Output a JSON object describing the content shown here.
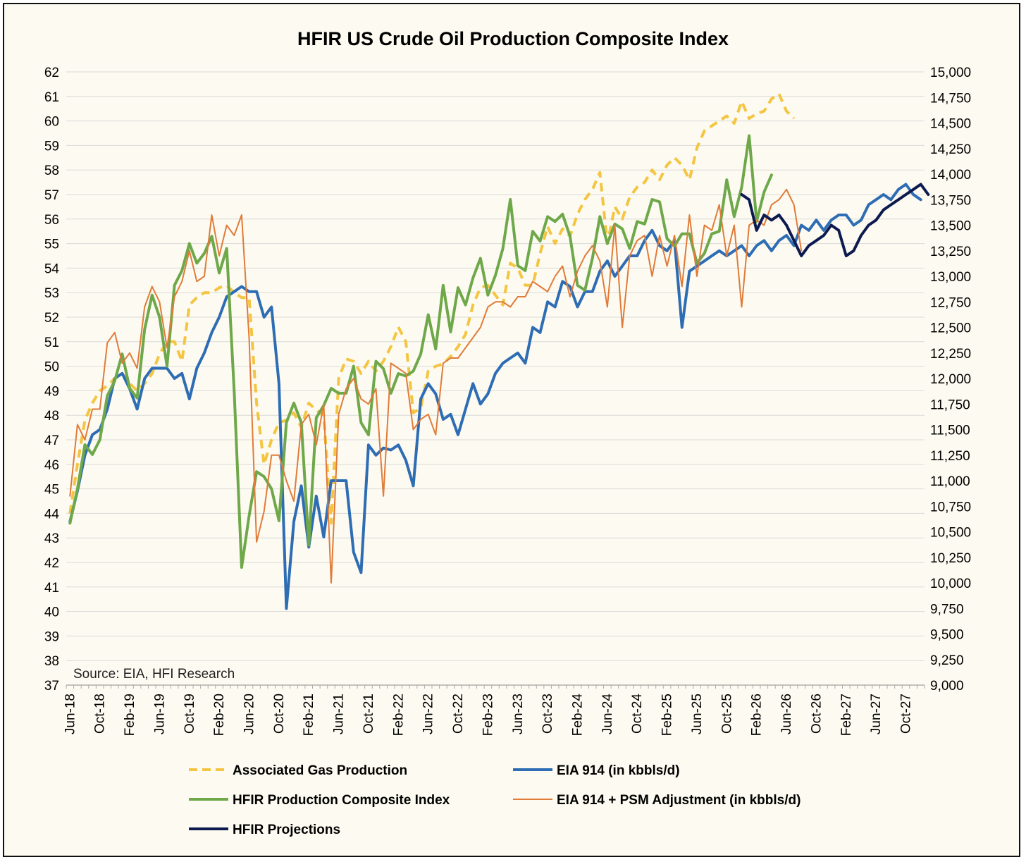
{
  "chart_data": {
    "type": "line",
    "title": "HFIR US Crude Oil Production Composite Index",
    "source": "Source: EIA, HFI Research",
    "left_axis": {
      "min": 37,
      "max": 62,
      "step": 1,
      "labels": [
        "37",
        "38",
        "39",
        "40",
        "41",
        "42",
        "43",
        "44",
        "45",
        "46",
        "47",
        "48",
        "49",
        "50",
        "51",
        "52",
        "53",
        "54",
        "55",
        "56",
        "57",
        "58",
        "59",
        "60",
        "61",
        "62"
      ]
    },
    "right_axis": {
      "min": 9000,
      "max": 15000,
      "step": 250,
      "labels": [
        "9,000",
        "9,250",
        "9,500",
        "9,750",
        "10,000",
        "10,250",
        "10,500",
        "10,750",
        "11,000",
        "11,250",
        "11,500",
        "11,750",
        "12,000",
        "12,250",
        "12,500",
        "12,750",
        "13,000",
        "13,250",
        "13,500",
        "13,750",
        "14,000",
        "14,250",
        "14,500",
        "14,750",
        "15,000"
      ]
    },
    "x_axis": {
      "start": "Jun-2018",
      "months": 115,
      "labels": [
        "Jun-18",
        "Oct-18",
        "Feb-19",
        "Jun-19",
        "Oct-19",
        "Feb-20",
        "Jun-20",
        "Oct-20",
        "Feb-21",
        "Jun-21",
        "Oct-21",
        "Feb-22",
        "Jun-22",
        "Oct-22",
        "Feb-23",
        "Jun-23",
        "Oct-23",
        "Feb-24",
        "Jun-24",
        "Oct-24",
        "Feb-25",
        "Jun-25",
        "Oct-25",
        "Feb-26",
        "Jun-26",
        "Oct-26",
        "Feb-27",
        "Jun-27",
        "Oct-27"
      ]
    },
    "legend": {
      "position": "bottom",
      "columns": 2
    },
    "series": [
      {
        "name": "Associated Gas Production",
        "axis": "left",
        "color": "#f4c542",
        "dash": true,
        "width": 4,
        "start": 0,
        "values": [
          44.0,
          46.0,
          47.8,
          48.5,
          49.0,
          49.2,
          49.5,
          49.7,
          49.3,
          49.0,
          49.3,
          49.7,
          50.5,
          51.0,
          51.0,
          50.2,
          52.5,
          52.8,
          53.0,
          53.0,
          53.2,
          53.3,
          53.0,
          52.8,
          52.8,
          48.5,
          46.0,
          47.0,
          47.7,
          47.8,
          48.1,
          47.5,
          48.5,
          48.2,
          48.0,
          43.6,
          49.5,
          50.3,
          50.2,
          49.7,
          50.2,
          49.8,
          50.2,
          50.8,
          51.6,
          51.0,
          48.1,
          48.3,
          49.8,
          50.0,
          50.1,
          50.4,
          50.8,
          51.3,
          52.5,
          53.2,
          53.3,
          52.9,
          52.5,
          54.2,
          54.0,
          53.3,
          53.3,
          54.6,
          55.7,
          55.0,
          55.6,
          55.3,
          56.2,
          56.8,
          57.2,
          57.9,
          55.0,
          56.5,
          56.0,
          56.9,
          57.3,
          57.5,
          58.0,
          57.6,
          58.2,
          58.5,
          58.2,
          57.6,
          58.9,
          59.6,
          59.8,
          60.0,
          60.2,
          59.9,
          60.8,
          60.1,
          60.3,
          60.4,
          60.9,
          61.1,
          60.4,
          60.1
        ],
        "scale": "left"
      },
      {
        "name": "EIA 914 (in kbbls/d)",
        "axis": "right",
        "color": "#2e6db4",
        "dash": false,
        "width": 4,
        "start": 0,
        "values": [
          10600,
          10900,
          11250,
          11450,
          11500,
          11700,
          12000,
          12050,
          11900,
          11700,
          12000,
          12100,
          12100,
          12100,
          12000,
          12050,
          11800,
          12100,
          12250,
          12450,
          12600,
          12800,
          12850,
          12900,
          12850,
          12850,
          12600,
          12700,
          11950,
          9750,
          10600,
          10950,
          10350,
          10850,
          10450,
          11000,
          11000,
          11000,
          10300,
          10100,
          11350,
          11250,
          11320,
          11300,
          11350,
          11200,
          10950,
          11800,
          11950,
          11850,
          11600,
          11650,
          11450,
          11700,
          11950,
          11750,
          11850,
          12050,
          12150,
          12200,
          12250,
          12150,
          12500,
          12450,
          12750,
          12700,
          12950,
          12900,
          12700,
          12850,
          12850,
          13050,
          13150,
          13000,
          13100,
          13200,
          13200,
          13350,
          13450,
          13300,
          13250,
          13350,
          12500,
          13050,
          13100,
          13150,
          13200,
          13250,
          13200,
          13250,
          13300,
          13200,
          13300,
          13350,
          13250,
          13350,
          13400,
          13300,
          13500,
          13450,
          13550,
          13450,
          13550,
          13600,
          13600,
          13500,
          13550,
          13700,
          13750,
          13800,
          13750,
          13850,
          13900,
          13800,
          13750
        ]
      },
      {
        "name": "HFIR Production Composite Index",
        "axis": "left",
        "color": "#6ea84a",
        "dash": false,
        "width": 4,
        "start": 0,
        "values": [
          43.6,
          45.0,
          46.8,
          46.4,
          47.0,
          48.8,
          49.4,
          50.5,
          49.1,
          48.7,
          51.5,
          52.9,
          52.0,
          50.0,
          53.3,
          53.9,
          55.0,
          54.2,
          54.6,
          55.3,
          53.8,
          54.8,
          49.0,
          41.8,
          43.9,
          45.7,
          45.5,
          45.0,
          43.7,
          47.7,
          48.5,
          47.7,
          42.7,
          47.9,
          48.4,
          49.1,
          48.9,
          48.9,
          50.0,
          47.7,
          47.2,
          50.2,
          49.9,
          48.9,
          49.7,
          49.6,
          49.8,
          50.5,
          52.1,
          50.7,
          53.3,
          51.4,
          53.2,
          52.5,
          53.6,
          54.4,
          52.9,
          53.7,
          54.8,
          56.8,
          54.1,
          53.9,
          55.5,
          55.1,
          56.1,
          55.9,
          56.2,
          55.3,
          53.3,
          53.1,
          54.4,
          56.1,
          55.0,
          55.8,
          55.6,
          54.8,
          55.9,
          55.8,
          56.8,
          56.7,
          55.2,
          54.9,
          55.4,
          55.4,
          54.2,
          54.6,
          55.4,
          55.5,
          57.6,
          56.1,
          57.3,
          59.4,
          55.9,
          57.1,
          57.8
        ]
      },
      {
        "name": "EIA 914 + PSM Adjustment (in kbbls/d)",
        "axis": "right",
        "color": "#e07b39",
        "dash": false,
        "width": 2,
        "start": 0,
        "values": [
          10850,
          11550,
          11400,
          11700,
          11700,
          12350,
          12450,
          12150,
          12250,
          12100,
          12700,
          12900,
          12750,
          12300,
          12800,
          12950,
          13250,
          12950,
          13000,
          13600,
          13200,
          13500,
          13400,
          13600,
          12400,
          10400,
          10700,
          11250,
          11250,
          11000,
          10800,
          11550,
          11650,
          11350,
          11750,
          10000,
          11650,
          11900,
          12000,
          11800,
          11750,
          11900,
          10850,
          12150,
          12100,
          12050,
          11500,
          11600,
          11650,
          11450,
          12150,
          12200,
          12200,
          12300,
          12400,
          12500,
          12700,
          12750,
          12750,
          12700,
          12800,
          12800,
          12950,
          12900,
          12850,
          13000,
          13100,
          12800,
          13050,
          13200,
          13300,
          13150,
          12700,
          13500,
          12500,
          13200,
          13350,
          13400,
          13000,
          13400,
          13100,
          13400,
          12900,
          13600,
          13000,
          13500,
          13450,
          13700,
          13200,
          13500,
          12700,
          13500,
          13550,
          13500,
          13700,
          13750,
          13850,
          13700,
          13250
        ]
      },
      {
        "name": "HFIR Projections",
        "axis": "right",
        "color": "#0d1a4f",
        "dash": false,
        "width": 4,
        "start": 90,
        "values": [
          13800,
          13750,
          13450,
          13600,
          13550,
          13600,
          13500,
          13350,
          13200,
          13300,
          13350,
          13400,
          13500,
          13450,
          13200,
          13250,
          13400,
          13500,
          13550,
          13650,
          13700,
          13750,
          13800,
          13850,
          13900,
          13800
        ]
      }
    ]
  }
}
